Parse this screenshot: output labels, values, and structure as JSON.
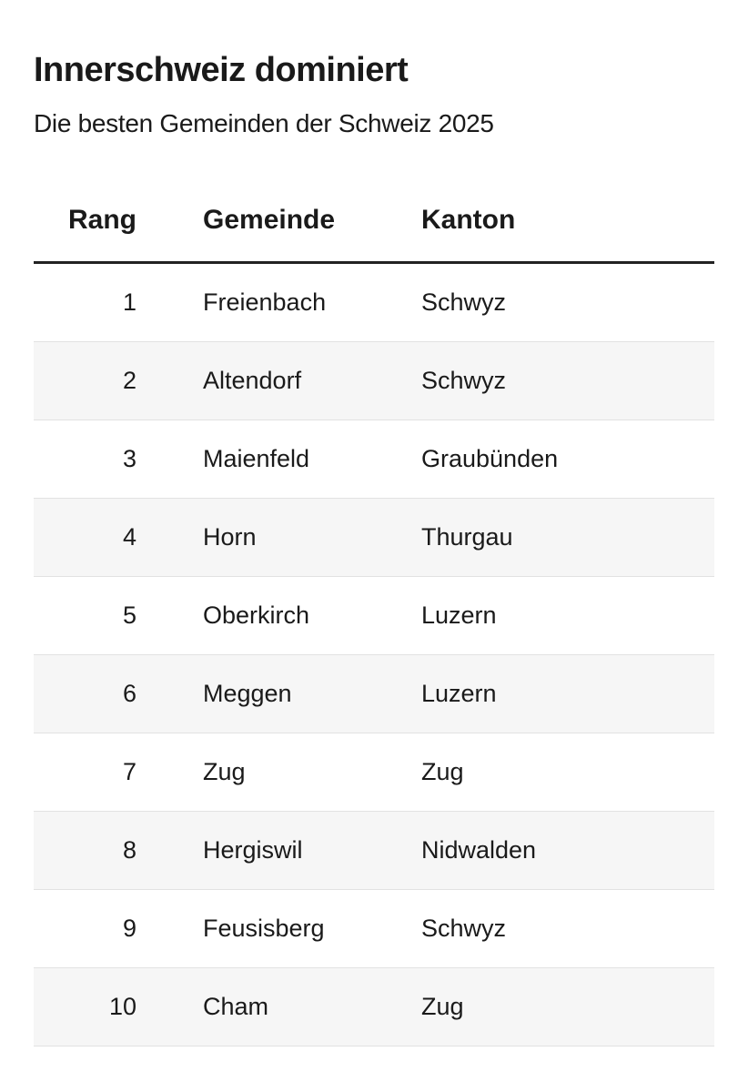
{
  "header": {
    "title": "Innerschweiz dominiert",
    "subtitle": "Die besten Gemeinden der Schweiz 2025"
  },
  "table": {
    "columns": [
      "Rang",
      "Gemeinde",
      "Kanton"
    ],
    "rows": [
      [
        "1",
        "Freienbach",
        "Schwyz"
      ],
      [
        "2",
        "Altendorf",
        "Schwyz"
      ],
      [
        "3",
        "Maienfeld",
        "Graubünden"
      ],
      [
        "4",
        "Horn",
        "Thurgau"
      ],
      [
        "5",
        "Oberkirch",
        "Luzern"
      ],
      [
        "6",
        "Meggen",
        "Luzern"
      ],
      [
        "7",
        "Zug",
        "Zug"
      ],
      [
        "8",
        "Hergiswil",
        "Nidwalden"
      ],
      [
        "9",
        "Feusisberg",
        "Schwyz"
      ],
      [
        "10",
        "Cham",
        "Zug"
      ]
    ]
  }
}
